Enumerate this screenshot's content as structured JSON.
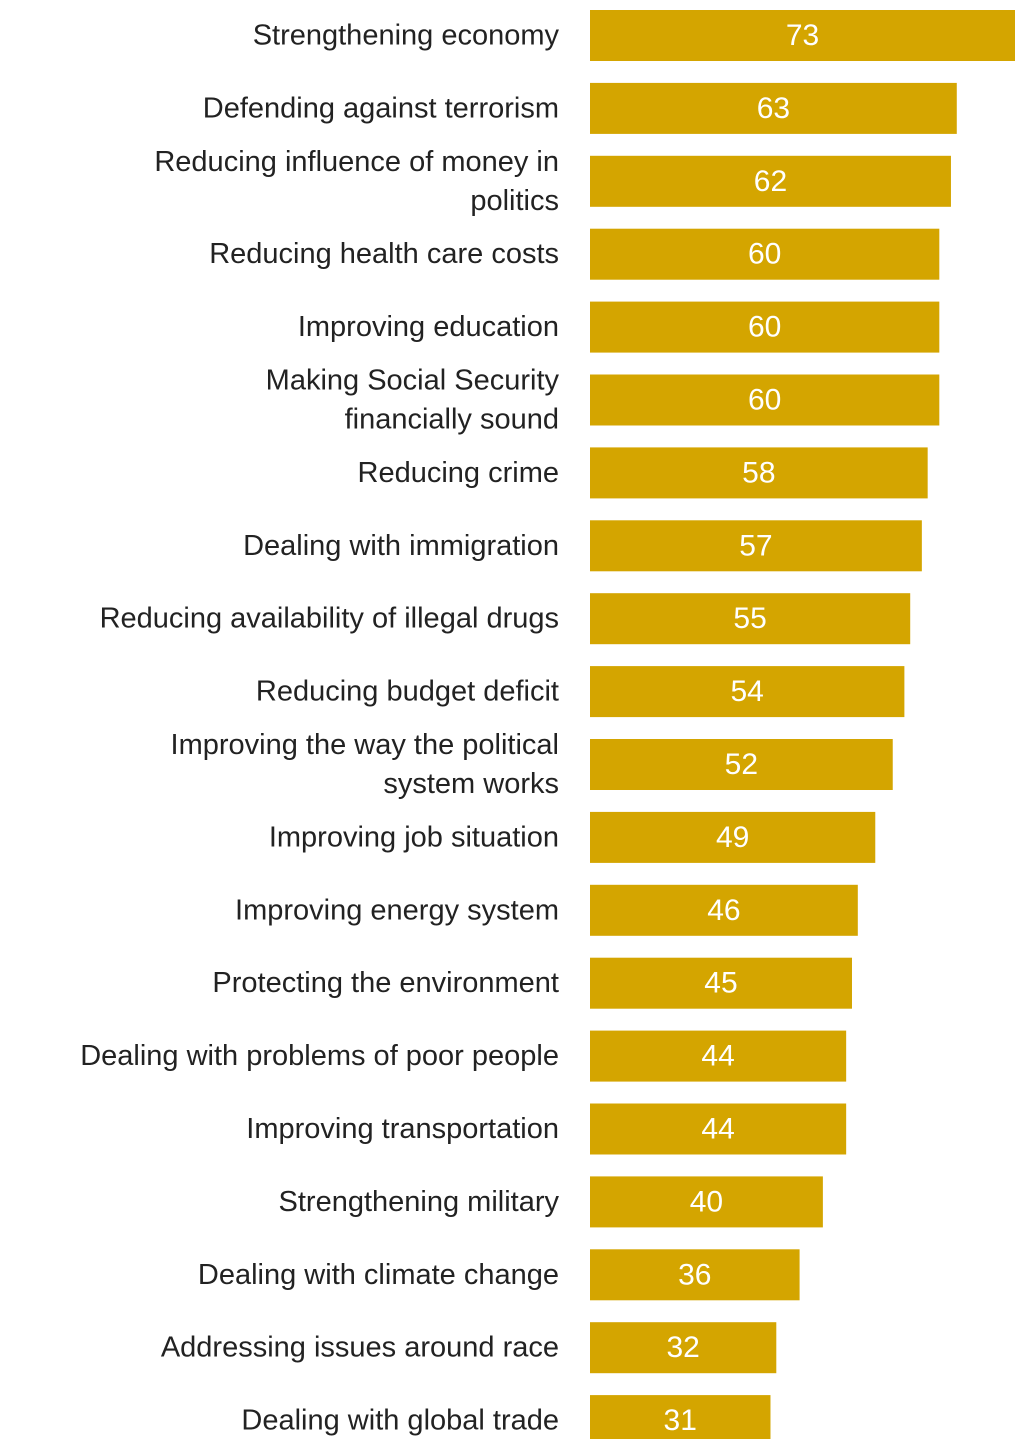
{
  "chart_data": {
    "type": "bar",
    "orientation": "horizontal",
    "categories": [
      "Strengthening economy",
      "Defending against terrorism",
      "Reducing influence of money in politics",
      "Reducing health care costs",
      "Improving education",
      "Making Social Security financially sound",
      "Reducing crime",
      "Dealing with immigration",
      "Reducing availability of illegal drugs",
      "Reducing budget deficit",
      "Improving the way the political system works",
      "Improving job situation",
      "Improving energy system",
      "Protecting the environment",
      "Dealing with problems of poor people",
      "Improving transportation",
      "Strengthening military",
      "Dealing with climate change",
      "Addressing issues around race",
      "Dealing with global trade"
    ],
    "category_lines": [
      [
        "Strengthening economy"
      ],
      [
        "Defending against terrorism"
      ],
      [
        "Reducing influence of money in",
        "politics"
      ],
      [
        "Reducing health care costs"
      ],
      [
        "Improving education"
      ],
      [
        "Making Social Security",
        "financially sound"
      ],
      [
        "Reducing crime"
      ],
      [
        "Dealing with immigration"
      ],
      [
        "Reducing availability of illegal drugs"
      ],
      [
        "Reducing budget deficit"
      ],
      [
        "Improving the way the political",
        "system works"
      ],
      [
        "Improving job situation"
      ],
      [
        "Improving energy system"
      ],
      [
        "Protecting the environment"
      ],
      [
        "Dealing with problems of poor people"
      ],
      [
        "Improving transportation"
      ],
      [
        "Strengthening military"
      ],
      [
        "Dealing with climate change"
      ],
      [
        "Addressing issues around race"
      ],
      [
        "Dealing with global trade"
      ]
    ],
    "values": [
      73,
      63,
      62,
      60,
      60,
      60,
      58,
      57,
      55,
      54,
      52,
      49,
      46,
      45,
      44,
      44,
      40,
      36,
      32,
      31
    ],
    "xlim": [
      0,
      73
    ],
    "bar_color": "#D4A500",
    "value_label_color": "#FFFFFF",
    "text_color": "#222222",
    "grid": false,
    "legend": false
  }
}
